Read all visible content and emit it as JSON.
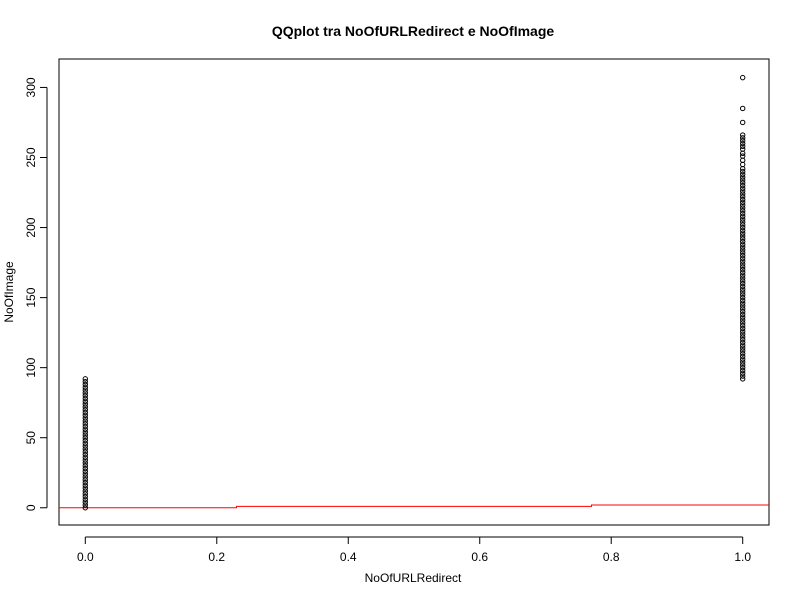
{
  "chart_data": {
    "type": "scatter",
    "title": "QQplot tra NoOfURLRedirect e NoOfImage",
    "xlabel": "NoOfURLRedirect",
    "ylabel": "NoOfImage",
    "xlim": [
      -0.04,
      1.04
    ],
    "ylim": [
      -12.3,
      320.3
    ],
    "x_ticks": [
      "0.0",
      "0.2",
      "0.4",
      "0.6",
      "0.8",
      "1.0"
    ],
    "y_ticks": [
      "0",
      "50",
      "100",
      "150",
      "200",
      "250",
      "300"
    ],
    "grid": false,
    "series": [
      {
        "marker": "open-circle",
        "color": "#000000",
        "points": [
          [
            0,
            0
          ],
          [
            0,
            2
          ],
          [
            0,
            4
          ],
          [
            0,
            6
          ],
          [
            0,
            8
          ],
          [
            0,
            10
          ],
          [
            0,
            12
          ],
          [
            0,
            14
          ],
          [
            0,
            16
          ],
          [
            0,
            18
          ],
          [
            0,
            20
          ],
          [
            0,
            22
          ],
          [
            0,
            24
          ],
          [
            0,
            26
          ],
          [
            0,
            28
          ],
          [
            0,
            30
          ],
          [
            0,
            32
          ],
          [
            0,
            34
          ],
          [
            0,
            36
          ],
          [
            0,
            38
          ],
          [
            0,
            40
          ],
          [
            0,
            42
          ],
          [
            0,
            44
          ],
          [
            0,
            46
          ],
          [
            0,
            48
          ],
          [
            0,
            50
          ],
          [
            0,
            52
          ],
          [
            0,
            54
          ],
          [
            0,
            56
          ],
          [
            0,
            58
          ],
          [
            0,
            60
          ],
          [
            0,
            62
          ],
          [
            0,
            64
          ],
          [
            0,
            66
          ],
          [
            0,
            68
          ],
          [
            0,
            70
          ],
          [
            0,
            72
          ],
          [
            0,
            74
          ],
          [
            0,
            76
          ],
          [
            0,
            78
          ],
          [
            0,
            80
          ],
          [
            0,
            82
          ],
          [
            0,
            84
          ],
          [
            0,
            86
          ],
          [
            0,
            88
          ],
          [
            0,
            90
          ],
          [
            0,
            92
          ],
          [
            1,
            92
          ],
          [
            1,
            94
          ],
          [
            1,
            96
          ],
          [
            1,
            98
          ],
          [
            1,
            100
          ],
          [
            1,
            102
          ],
          [
            1,
            104
          ],
          [
            1,
            106
          ],
          [
            1,
            108
          ],
          [
            1,
            110
          ],
          [
            1,
            112
          ],
          [
            1,
            114
          ],
          [
            1,
            116
          ],
          [
            1,
            118
          ],
          [
            1,
            120
          ],
          [
            1,
            122
          ],
          [
            1,
            124
          ],
          [
            1,
            126
          ],
          [
            1,
            128
          ],
          [
            1,
            130
          ],
          [
            1,
            132
          ],
          [
            1,
            134
          ],
          [
            1,
            136
          ],
          [
            1,
            138
          ],
          [
            1,
            140
          ],
          [
            1,
            142
          ],
          [
            1,
            144
          ],
          [
            1,
            146
          ],
          [
            1,
            148
          ],
          [
            1,
            150
          ],
          [
            1,
            152
          ],
          [
            1,
            154
          ],
          [
            1,
            156
          ],
          [
            1,
            158
          ],
          [
            1,
            160
          ],
          [
            1,
            162
          ],
          [
            1,
            164
          ],
          [
            1,
            166
          ],
          [
            1,
            168
          ],
          [
            1,
            170
          ],
          [
            1,
            172
          ],
          [
            1,
            174
          ],
          [
            1,
            176
          ],
          [
            1,
            178
          ],
          [
            1,
            180
          ],
          [
            1,
            182
          ],
          [
            1,
            184
          ],
          [
            1,
            186
          ],
          [
            1,
            188
          ],
          [
            1,
            190
          ],
          [
            1,
            192
          ],
          [
            1,
            194
          ],
          [
            1,
            196
          ],
          [
            1,
            198
          ],
          [
            1,
            200
          ],
          [
            1,
            202
          ],
          [
            1,
            204
          ],
          [
            1,
            206
          ],
          [
            1,
            208
          ],
          [
            1,
            210
          ],
          [
            1,
            212
          ],
          [
            1,
            214
          ],
          [
            1,
            216
          ],
          [
            1,
            218
          ],
          [
            1,
            220
          ],
          [
            1,
            222
          ],
          [
            1,
            224
          ],
          [
            1,
            226
          ],
          [
            1,
            228
          ],
          [
            1,
            230
          ],
          [
            1,
            232
          ],
          [
            1,
            234
          ],
          [
            1,
            236
          ],
          [
            1,
            238
          ],
          [
            1,
            240
          ],
          [
            1,
            242
          ],
          [
            1,
            245
          ],
          [
            1,
            248
          ],
          [
            1,
            251
          ],
          [
            1,
            253
          ],
          [
            1,
            256
          ],
          [
            1,
            258
          ],
          [
            1,
            260
          ],
          [
            1,
            262
          ],
          [
            1,
            264
          ],
          [
            1,
            266
          ],
          [
            1,
            275
          ],
          [
            1,
            285
          ],
          [
            1,
            307
          ]
        ]
      }
    ],
    "reference_line": {
      "color": "#ff0000",
      "points": [
        [
          -0.04,
          0
        ],
        [
          0.23,
          0
        ],
        [
          0.23,
          1
        ],
        [
          0.77,
          1
        ],
        [
          0.77,
          2
        ],
        [
          1.04,
          2
        ]
      ]
    }
  }
}
